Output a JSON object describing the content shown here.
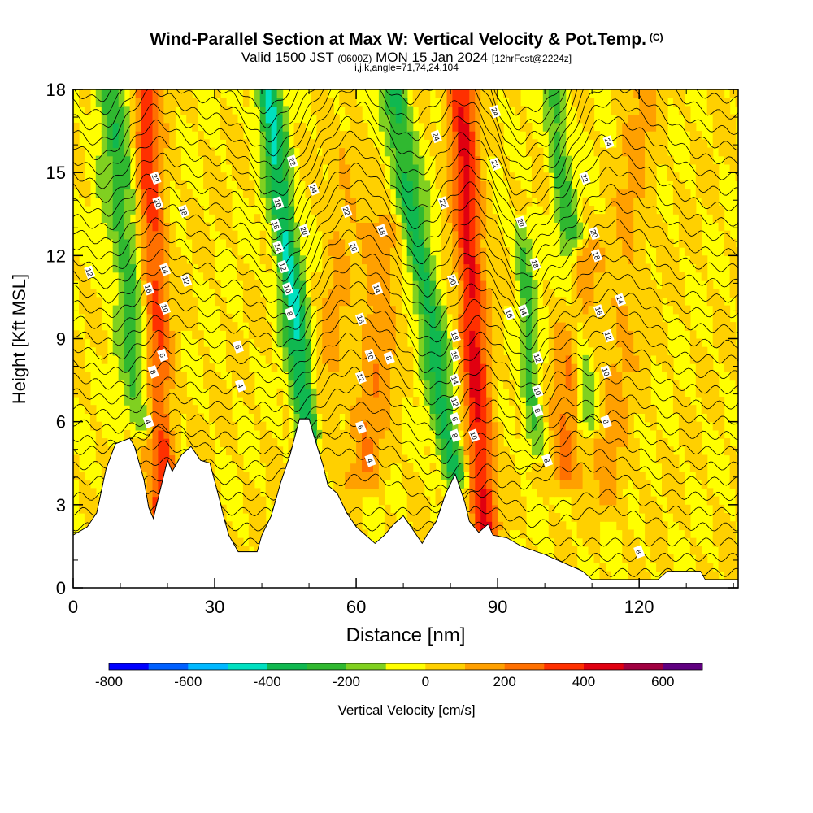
{
  "title": "Wind-Parallel Section at Max W: Vertical Velocity & Pot.Temp.",
  "title_tag": "(C)",
  "valid": {
    "prefix": "Valid 1500 JST",
    "utc": "(0600Z)",
    "date": "MON 15 Jan 2024",
    "forecast": "[12hrFcst@2224z]"
  },
  "indices": "i,j,k,angle=71,74,24,104",
  "chart_data": {
    "type": "heatmap",
    "xlabel": "Distance [nm]",
    "ylabel": "Height [Kft MSL]",
    "xlim": [
      0,
      141
    ],
    "ylim": [
      0,
      18
    ],
    "xticks": [
      0,
      30,
      60,
      90,
      120
    ],
    "yticks": [
      0,
      3,
      6,
      9,
      12,
      15,
      18
    ],
    "colorbar": {
      "label": "Vertical Velocity [cm/s]",
      "ticks": [
        -800,
        -600,
        -400,
        -200,
        0,
        200,
        400,
        600
      ],
      "colors": [
        "#0000ff",
        "#0060ff",
        "#00b8ff",
        "#00e0c0",
        "#10b850",
        "#30b830",
        "#80d020",
        "#ffff00",
        "#ffd000",
        "#ffa000",
        "#ff7000",
        "#ff3000",
        "#e00010",
        "#a00040",
        "#600080"
      ]
    },
    "fill_colors": {
      "low": "#ffff00",
      "mid": "#ffd000",
      "high": "#ffa000",
      "updraft": "#ff7000",
      "updraft_core": "#ff3000",
      "downdraft": "#80d020",
      "downdraft_strong": "#30b830",
      "downdraft_core": "#00e0c0"
    },
    "updrafts": [
      {
        "x": 19,
        "w": 4.5,
        "base": 2.8,
        "top": 18,
        "slant": -0.25,
        "value": 380
      },
      {
        "x": 52,
        "w": 5,
        "base": 4.5,
        "top": 16,
        "slant": 0.55,
        "value": 120
      },
      {
        "x": 62,
        "w": 6,
        "base": 4.0,
        "top": 13,
        "slant": 0.45,
        "value": 180
      },
      {
        "x": 87,
        "w": 4.5,
        "base": 2.2,
        "top": 18,
        "slant": -0.3,
        "value": 420
      },
      {
        "x": 104,
        "w": 5,
        "base": 4.0,
        "top": 12,
        "slant": 0.45,
        "value": 250
      },
      {
        "x": 113,
        "w": 6,
        "base": 3.0,
        "top": 18,
        "slant": 0.5,
        "value": 120
      }
    ],
    "downdrafts": [
      {
        "x": 15,
        "w": 6,
        "base": 6.0,
        "top": 18,
        "slant": -0.55,
        "value": -260
      },
      {
        "x": 50,
        "w": 4,
        "base": 5.5,
        "top": 18,
        "slant": -0.7,
        "value": -420
      },
      {
        "x": 81,
        "w": 4.5,
        "base": 4.0,
        "top": 18,
        "slant": -0.95,
        "value": -330
      },
      {
        "x": 98,
        "w": 3,
        "base": 5.0,
        "top": 13,
        "slant": -0.35,
        "value": -220
      },
      {
        "x": 109,
        "w": 3.5,
        "base": 6.0,
        "top": 18,
        "slant": -0.6,
        "value": -250
      }
    ],
    "terrain": [
      [
        0,
        1.9
      ],
      [
        3,
        2.2
      ],
      [
        5,
        2.7
      ],
      [
        7,
        4.3
      ],
      [
        9,
        5.2
      ],
      [
        12,
        5.4
      ],
      [
        13,
        5.1
      ],
      [
        14,
        4.5
      ],
      [
        15,
        3.9
      ],
      [
        16,
        2.9
      ],
      [
        17,
        2.5
      ],
      [
        18,
        3.2
      ],
      [
        19,
        3.9
      ],
      [
        20,
        4.6
      ],
      [
        21,
        4.2
      ],
      [
        23,
        4.8
      ],
      [
        25,
        5.1
      ],
      [
        27,
        4.6
      ],
      [
        29,
        4.5
      ],
      [
        31,
        3.2
      ],
      [
        32,
        2.5
      ],
      [
        33,
        1.9
      ],
      [
        34,
        1.6
      ],
      [
        35,
        1.3
      ],
      [
        39,
        1.3
      ],
      [
        40,
        1.9
      ],
      [
        42,
        2.6
      ],
      [
        44,
        3.8
      ],
      [
        46,
        4.8
      ],
      [
        48,
        6.1
      ],
      [
        50,
        6.1
      ],
      [
        51,
        5.5
      ],
      [
        53,
        4.4
      ],
      [
        54,
        3.7
      ],
      [
        56,
        3.4
      ],
      [
        58,
        2.7
      ],
      [
        60,
        2.2
      ],
      [
        62,
        1.9
      ],
      [
        64,
        1.6
      ],
      [
        66,
        1.9
      ],
      [
        68,
        2.3
      ],
      [
        70,
        2.6
      ],
      [
        72,
        2.1
      ],
      [
        74,
        1.6
      ],
      [
        75,
        1.9
      ],
      [
        77,
        2.4
      ],
      [
        79,
        3.4
      ],
      [
        81,
        4.1
      ],
      [
        82,
        3.6
      ],
      [
        83,
        3.1
      ],
      [
        84,
        2.4
      ],
      [
        86,
        2.0
      ],
      [
        88,
        2.3
      ],
      [
        89,
        1.9
      ],
      [
        92,
        1.8
      ],
      [
        95,
        1.5
      ],
      [
        100,
        1.2
      ],
      [
        104,
        0.9
      ],
      [
        108,
        0.6
      ],
      [
        110,
        0.3
      ],
      [
        124,
        0.3
      ],
      [
        126,
        0.6
      ],
      [
        133,
        0.6
      ],
      [
        134,
        0.3
      ],
      [
        141,
        0.3
      ]
    ],
    "contour_labels": [
      {
        "text": "4",
        "x": 16,
        "y": 6.0
      },
      {
        "text": "8",
        "x": 17,
        "y": 7.8
      },
      {
        "text": "6",
        "x": 19,
        "y": 8.4
      },
      {
        "text": "10",
        "x": 19.5,
        "y": 10.1
      },
      {
        "text": "14",
        "x": 19.5,
        "y": 11.5
      },
      {
        "text": "16",
        "x": 16,
        "y": 10.8
      },
      {
        "text": "12",
        "x": 3.5,
        "y": 11.4
      },
      {
        "text": "20",
        "x": 18,
        "y": 13.9
      },
      {
        "text": "22",
        "x": 17.5,
        "y": 14.8
      },
      {
        "text": "18",
        "x": 23.5,
        "y": 13.6
      },
      {
        "text": "12",
        "x": 24,
        "y": 11.1
      },
      {
        "text": "6",
        "x": 35,
        "y": 8.7
      },
      {
        "text": "4",
        "x": 35.5,
        "y": 7.3
      },
      {
        "text": "16",
        "x": 43.5,
        "y": 13.9
      },
      {
        "text": "18",
        "x": 43,
        "y": 13.1
      },
      {
        "text": "14",
        "x": 43.5,
        "y": 12.3
      },
      {
        "text": "12",
        "x": 44.5,
        "y": 11.6
      },
      {
        "text": "10",
        "x": 45.5,
        "y": 10.8
      },
      {
        "text": "8",
        "x": 46,
        "y": 9.9
      },
      {
        "text": "22",
        "x": 46.5,
        "y": 15.4
      },
      {
        "text": "24",
        "x": 51,
        "y": 14.4
      },
      {
        "text": "20",
        "x": 49,
        "y": 12.9
      },
      {
        "text": "22",
        "x": 58,
        "y": 13.6
      },
      {
        "text": "20",
        "x": 59.5,
        "y": 12.3
      },
      {
        "text": "18",
        "x": 65.5,
        "y": 12.9
      },
      {
        "text": "14",
        "x": 64.5,
        "y": 10.8
      },
      {
        "text": "16",
        "x": 61,
        "y": 9.7
      },
      {
        "text": "10",
        "x": 63,
        "y": 8.4
      },
      {
        "text": "8",
        "x": 67,
        "y": 8.3
      },
      {
        "text": "12",
        "x": 61,
        "y": 7.6
      },
      {
        "text": "6",
        "x": 61,
        "y": 5.8
      },
      {
        "text": "4",
        "x": 63,
        "y": 4.6
      },
      {
        "text": "24",
        "x": 77,
        "y": 16.3
      },
      {
        "text": "22",
        "x": 78.5,
        "y": 13.9
      },
      {
        "text": "20",
        "x": 80.5,
        "y": 11.1
      },
      {
        "text": "18",
        "x": 81,
        "y": 9.1
      },
      {
        "text": "16",
        "x": 81,
        "y": 8.4
      },
      {
        "text": "14",
        "x": 81,
        "y": 7.5
      },
      {
        "text": "12",
        "x": 81,
        "y": 6.7
      },
      {
        "text": "6",
        "x": 81,
        "y": 6.1
      },
      {
        "text": "8",
        "x": 81,
        "y": 5.5
      },
      {
        "text": "10",
        "x": 85,
        "y": 5.5
      },
      {
        "text": "24",
        "x": 89.5,
        "y": 17.2
      },
      {
        "text": "22",
        "x": 89.5,
        "y": 15.3
      },
      {
        "text": "20",
        "x": 95,
        "y": 13.2
      },
      {
        "text": "18",
        "x": 98,
        "y": 11.7
      },
      {
        "text": "16",
        "x": 92.5,
        "y": 9.9
      },
      {
        "text": "14",
        "x": 95.5,
        "y": 10.0
      },
      {
        "text": "12",
        "x": 98.5,
        "y": 8.3
      },
      {
        "text": "10",
        "x": 98.5,
        "y": 7.1
      },
      {
        "text": "8",
        "x": 98.5,
        "y": 6.4
      },
      {
        "text": "8",
        "x": 100.5,
        "y": 4.6
      },
      {
        "text": "24",
        "x": 113.5,
        "y": 16.1
      },
      {
        "text": "22",
        "x": 108.5,
        "y": 14.8
      },
      {
        "text": "20",
        "x": 110.5,
        "y": 12.8
      },
      {
        "text": "18",
        "x": 111,
        "y": 12.0
      },
      {
        "text": "16",
        "x": 111.5,
        "y": 10.0
      },
      {
        "text": "14",
        "x": 116,
        "y": 10.4
      },
      {
        "text": "12",
        "x": 113.5,
        "y": 9.1
      },
      {
        "text": "10",
        "x": 113,
        "y": 7.8
      },
      {
        "text": "8",
        "x": 113,
        "y": 6.0
      },
      {
        "text": "8",
        "x": 120,
        "y": 1.3
      }
    ]
  }
}
